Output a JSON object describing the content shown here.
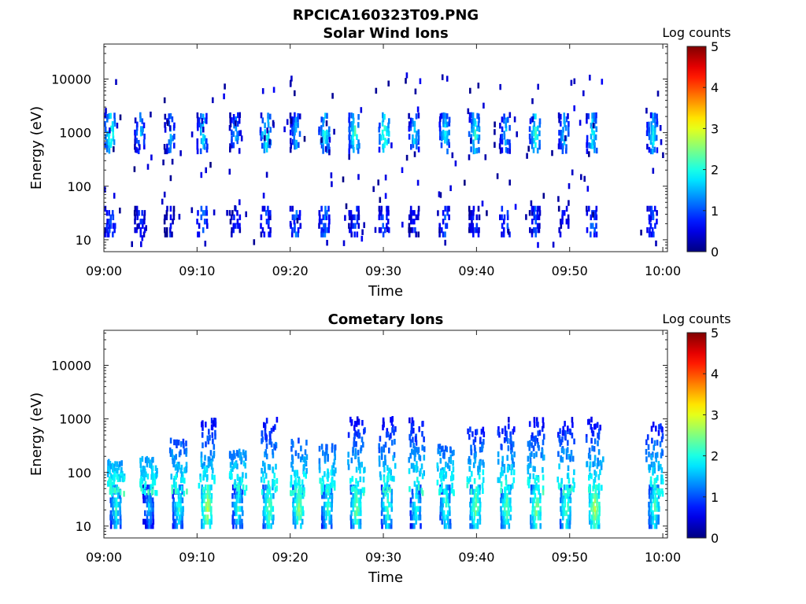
{
  "figure": {
    "title": "RPCICA160323T09.PNG"
  },
  "chart_data": [
    {
      "type": "heatmap",
      "title": "Solar Wind Ions",
      "xlabel": "Time",
      "ylabel": "Energy (eV)",
      "x_ticks": [
        "09:00",
        "09:10",
        "09:20",
        "09:30",
        "09:40",
        "09:50",
        "10:00"
      ],
      "x_range_minutes": [
        0,
        60.5
      ],
      "y_scale": "log",
      "y_ticks": [
        "10",
        "100",
        "1000",
        "10000"
      ],
      "y_range": [
        6,
        45000
      ],
      "colorbar": {
        "label": "Log counts",
        "range": [
          0,
          5
        ],
        "ticks": [
          "0",
          "1",
          "2",
          "3",
          "4",
          "5"
        ],
        "colormap": "jet"
      },
      "grid": false,
      "bursts": [
        {
          "t": 0.6,
          "hi_log": 2.1,
          "lo_log": 1.3
        },
        {
          "t": 3.8,
          "hi_log": 1.6,
          "lo_log": 1.1
        },
        {
          "t": 7.0,
          "hi_log": 1.5,
          "lo_log": 0.9
        },
        {
          "t": 10.5,
          "hi_log": 1.8,
          "lo_log": 1.4
        },
        {
          "t": 14.0,
          "hi_log": 1.5,
          "lo_log": 1.0
        },
        {
          "t": 17.3,
          "hi_log": 2.0,
          "lo_log": 1.2
        },
        {
          "t": 20.5,
          "hi_log": 1.6,
          "lo_log": 1.3
        },
        {
          "t": 23.6,
          "hi_log": 1.9,
          "lo_log": 1.4
        },
        {
          "t": 26.8,
          "hi_log": 2.1,
          "lo_log": 1.2
        },
        {
          "t": 30.0,
          "hi_log": 2.2,
          "lo_log": 1.3
        },
        {
          "t": 33.2,
          "hi_log": 1.7,
          "lo_log": 1.0
        },
        {
          "t": 36.5,
          "hi_log": 1.8,
          "lo_log": 1.2
        },
        {
          "t": 39.7,
          "hi_log": 2.0,
          "lo_log": 1.1
        },
        {
          "t": 43.0,
          "hi_log": 1.6,
          "lo_log": 1.3
        },
        {
          "t": 46.2,
          "hi_log": 2.0,
          "lo_log": 1.2
        },
        {
          "t": 49.3,
          "hi_log": 1.7,
          "lo_log": 1.0
        },
        {
          "t": 52.3,
          "hi_log": 1.9,
          "lo_log": 1.3
        },
        {
          "t": 58.8,
          "hi_log": 1.8,
          "lo_log": 1.2
        }
      ]
    },
    {
      "type": "heatmap",
      "title": "Cometary Ions",
      "xlabel": "Time",
      "ylabel": "Energy (eV)",
      "x_ticks": [
        "09:00",
        "09:10",
        "09:20",
        "09:30",
        "09:40",
        "09:50",
        "10:00"
      ],
      "x_range_minutes": [
        0,
        60.5
      ],
      "y_scale": "log",
      "y_ticks": [
        "10",
        "100",
        "1000",
        "10000"
      ],
      "y_range": [
        6,
        45000
      ],
      "colorbar": {
        "label": "Log counts",
        "range": [
          0,
          5
        ],
        "ticks": [
          "0",
          "1",
          "2",
          "3",
          "4",
          "5"
        ],
        "colormap": "jet"
      },
      "grid": false,
      "bursts": [
        {
          "t": 1.2,
          "core_log": 2.0,
          "top_log": 2.2
        },
        {
          "t": 4.7,
          "core_log": 1.6,
          "top_log": 2.3
        },
        {
          "t": 7.9,
          "core_log": 2.0,
          "top_log": 2.6
        },
        {
          "t": 11.0,
          "core_log": 2.7,
          "top_log": 3.0
        },
        {
          "t": 14.3,
          "core_log": 2.0,
          "top_log": 2.4
        },
        {
          "t": 17.6,
          "core_log": 2.4,
          "top_log": 3.0
        },
        {
          "t": 20.8,
          "core_log": 2.5,
          "top_log": 2.6
        },
        {
          "t": 23.9,
          "core_log": 2.1,
          "top_log": 2.5
        },
        {
          "t": 27.0,
          "core_log": 2.4,
          "top_log": 3.0
        },
        {
          "t": 30.3,
          "core_log": 2.2,
          "top_log": 3.0
        },
        {
          "t": 33.4,
          "core_log": 2.0,
          "top_log": 3.0
        },
        {
          "t": 36.6,
          "core_log": 2.1,
          "top_log": 2.5
        },
        {
          "t": 39.8,
          "core_log": 2.4,
          "top_log": 2.9
        },
        {
          "t": 43.1,
          "core_log": 2.3,
          "top_log": 3.0
        },
        {
          "t": 46.3,
          "core_log": 2.5,
          "top_log": 3.0
        },
        {
          "t": 49.5,
          "core_log": 2.3,
          "top_log": 3.0
        },
        {
          "t": 52.6,
          "core_log": 2.7,
          "top_log": 3.0
        },
        {
          "t": 59.0,
          "core_log": 2.2,
          "top_log": 2.9
        }
      ]
    }
  ]
}
